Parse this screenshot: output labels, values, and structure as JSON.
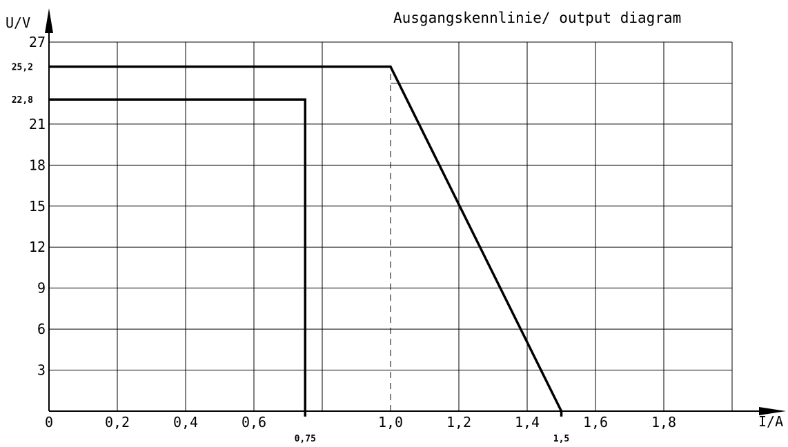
{
  "chart_data": {
    "type": "line",
    "title": "Ausgangskennlinie/ output diagram",
    "xlabel": "I/A",
    "ylabel": "U/V",
    "xlim": [
      0,
      2.0
    ],
    "ylim": [
      0,
      27
    ],
    "grid": true,
    "x_ticks": [
      0,
      0.2,
      0.4,
      0.6,
      1.0,
      1.2,
      1.4,
      1.6,
      1.8
    ],
    "x_tick_labels": [
      "0",
      "0,2",
      "0,4",
      "0,6",
      "1,0",
      "1,2",
      "1,4",
      "1,6",
      "1,8"
    ],
    "x_extra_ticks": [
      0.75,
      1.5
    ],
    "x_extra_tick_labels": [
      "0,75",
      "1,5"
    ],
    "y_ticks": [
      3,
      6,
      9,
      12,
      15,
      18,
      21,
      27
    ],
    "y_tick_labels": [
      "3",
      "6",
      "9",
      "12",
      "15",
      "18",
      "21",
      "27"
    ],
    "y_extra_ticks": [
      25.2,
      22.8
    ],
    "y_extra_tick_labels": [
      "25,2",
      "22,8"
    ],
    "series": [
      {
        "x": [
          0,
          1.0,
          1.5,
          1.5
        ],
        "y": [
          25.2,
          25.2,
          0,
          -0.4
        ]
      },
      {
        "x": [
          0,
          0.75,
          0.75
        ],
        "y": [
          22.8,
          22.8,
          -0.4
        ]
      }
    ],
    "reference_lines": [
      {
        "orientation": "vertical",
        "x": 1.0,
        "y_from": 0,
        "y_to": 25.2,
        "style": "dashed"
      }
    ]
  }
}
